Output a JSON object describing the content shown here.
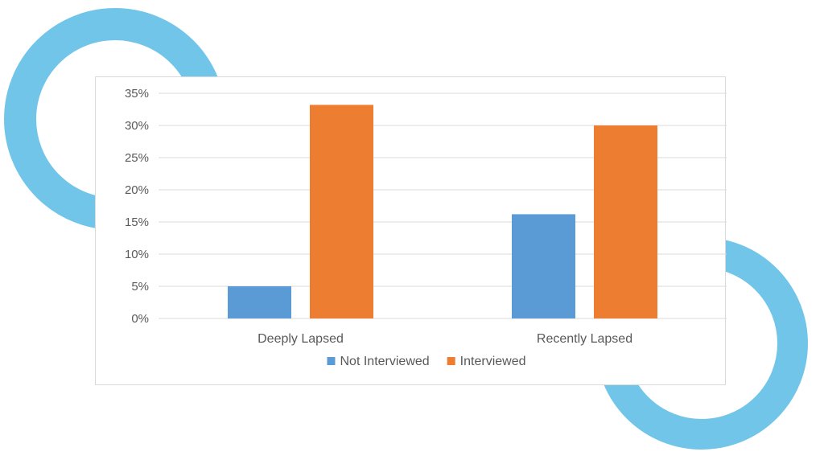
{
  "decor": {
    "ring_color": "#71c5e9"
  },
  "chart_data": {
    "type": "bar",
    "categories": [
      "Deeply Lapsed",
      "Recently Lapsed"
    ],
    "series": [
      {
        "name": "Not Interviewed",
        "values": [
          5,
          16.2
        ],
        "color": "#5b9bd5"
      },
      {
        "name": "Interviewed",
        "values": [
          33.2,
          30
        ],
        "color": "#ed7d31"
      }
    ],
    "y_ticks": [
      "0%",
      "5%",
      "10%",
      "15%",
      "20%",
      "25%",
      "30%",
      "35%"
    ],
    "ylim": [
      0,
      35
    ],
    "y_unit": "%",
    "grid": true,
    "legend_position": "bottom",
    "title": "",
    "xlabel": "",
    "ylabel": ""
  }
}
